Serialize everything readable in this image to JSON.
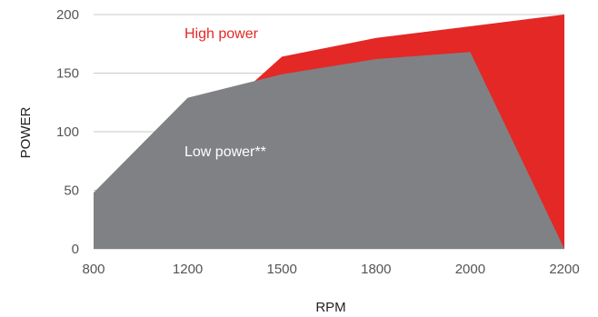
{
  "chart_data": {
    "type": "area",
    "xlabel": "RPM",
    "ylabel": "POWER",
    "x_ticks": [
      "800",
      "1200",
      "1500",
      "1800",
      "2000",
      "2200"
    ],
    "y_ticks": [
      "0",
      "50",
      "100",
      "150",
      "200"
    ],
    "ylim": [
      0,
      200
    ],
    "grid": true,
    "series": [
      {
        "name": "High power",
        "color": "#e32826",
        "points": [
          [
            1400,
            140
          ],
          [
            1500,
            164
          ],
          [
            1800,
            180
          ],
          [
            2200,
            200
          ],
          [
            2200,
            0
          ]
        ]
      },
      {
        "name": "Low power**",
        "color": "#808184",
        "points": [
          [
            800,
            0
          ],
          [
            800,
            48
          ],
          [
            1200,
            129
          ],
          [
            1500,
            149
          ],
          [
            1800,
            162
          ],
          [
            2000,
            168
          ],
          [
            2200,
            0
          ]
        ]
      }
    ]
  }
}
